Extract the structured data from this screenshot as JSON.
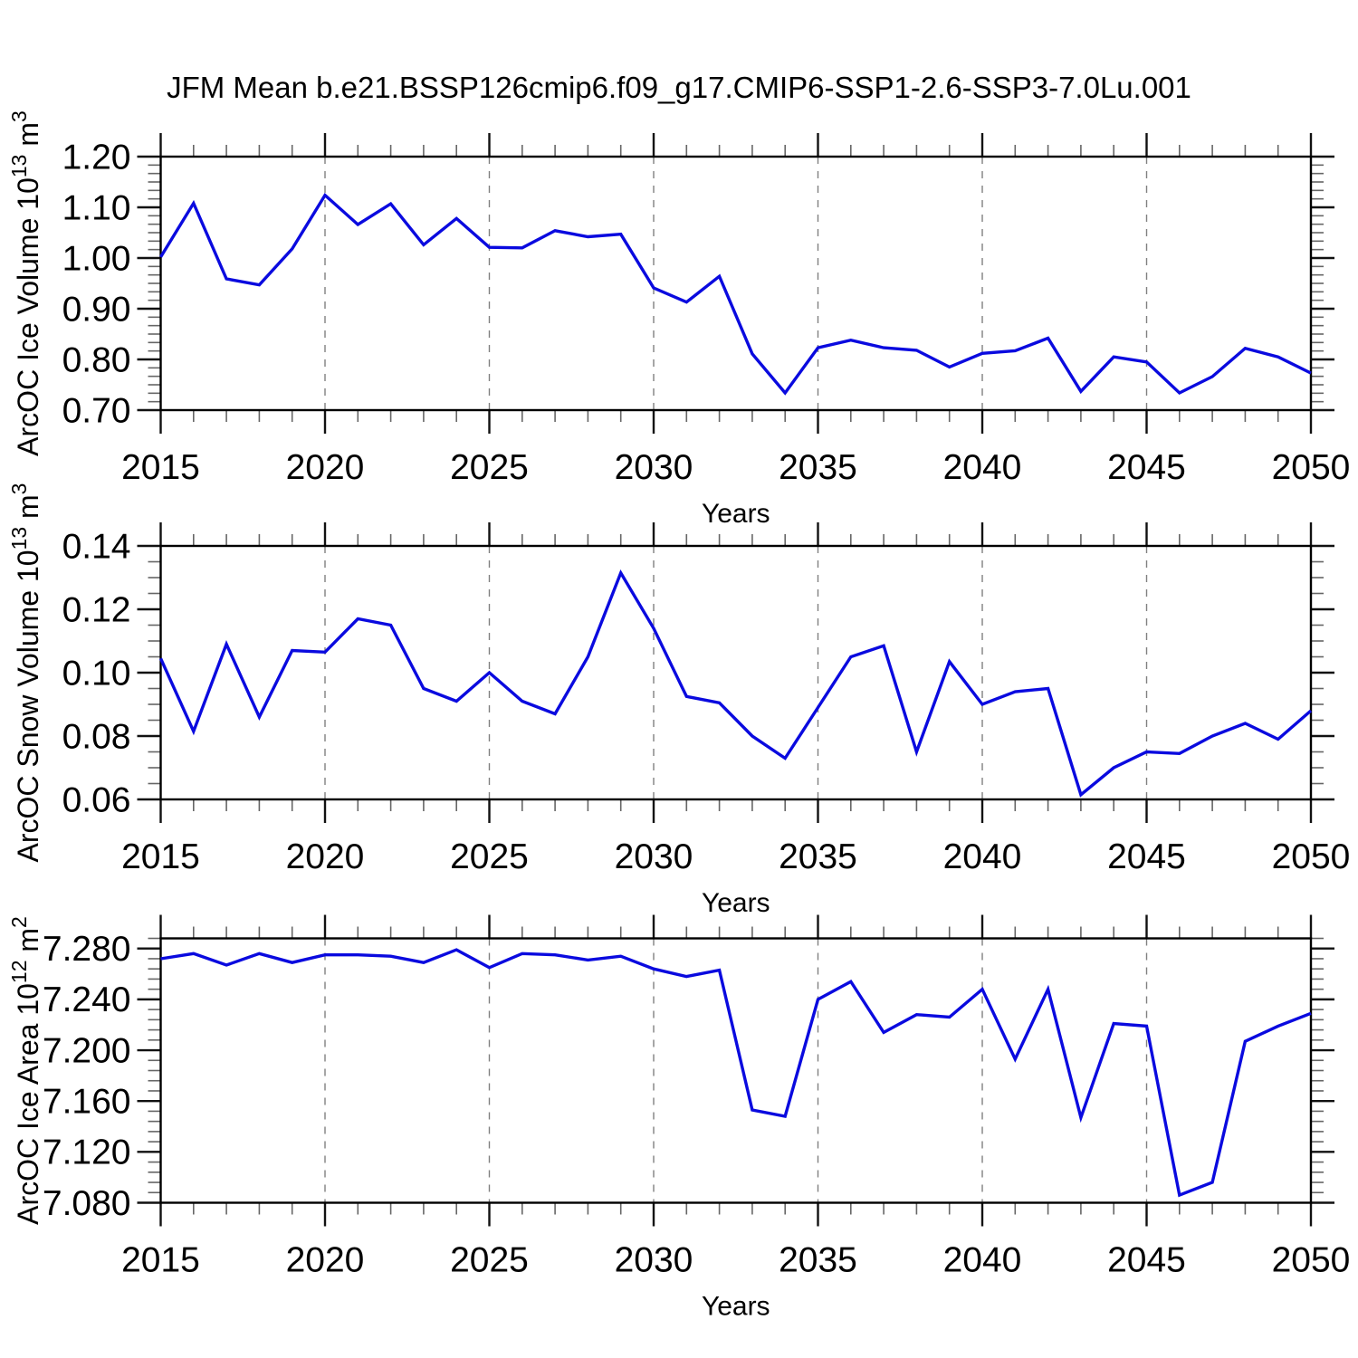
{
  "title": "JFM Mean b.e21.BSSP126cmip6.f09_g17.CMIP6-SSP1-2.6-SSP3-7.0Lu.001",
  "colors": {
    "series_line": "#0A0ADF",
    "gridline": "#808080",
    "frame": "#000000",
    "major_tick": "#111111",
    "minor_tick": "#666666",
    "text": "#000000",
    "background": "#ffffff"
  },
  "years": [
    2015,
    2016,
    2017,
    2018,
    2019,
    2020,
    2021,
    2022,
    2023,
    2024,
    2025,
    2026,
    2027,
    2028,
    2029,
    2030,
    2031,
    2032,
    2033,
    2034,
    2035,
    2036,
    2037,
    2038,
    2039,
    2040,
    2041,
    2042,
    2043,
    2044,
    2045,
    2046,
    2047,
    2048,
    2049,
    2050
  ],
  "x_major_ticks": [
    2015,
    2020,
    2025,
    2030,
    2035,
    2040,
    2045,
    2050
  ],
  "x_major_labels": [
    "2015",
    "2020",
    "2025",
    "2030",
    "2035",
    "2040",
    "2045",
    "2050"
  ],
  "x_gridline_years": [
    2020,
    2025,
    2030,
    2035,
    2040,
    2045
  ],
  "xlabel": "Years",
  "chart_data": [
    {
      "type": "line",
      "id": "ice-volume",
      "ylabel": "ArcOC Ice Volume 10¹³ m³",
      "ylabel_parts": [
        [
          "ArcOC Ice Volume 10",
          false
        ],
        [
          "13",
          true
        ],
        [
          " m",
          false
        ],
        [
          "3",
          true
        ]
      ],
      "xlabel": "Years",
      "ylim": [
        0.7,
        1.2
      ],
      "yticks": [
        1.2,
        1.1,
        1.0,
        0.9,
        0.8,
        0.7
      ],
      "ytick_labels": [
        "1.20",
        "1.10",
        "1.00",
        "0.90",
        "0.80",
        "0.70"
      ],
      "y_minor_subdiv": 6,
      "grid": "vertical-dashed",
      "legend": "none",
      "x": [
        2015,
        2016,
        2017,
        2018,
        2019,
        2020,
        2021,
        2022,
        2023,
        2024,
        2025,
        2026,
        2027,
        2028,
        2029,
        2030,
        2031,
        2032,
        2033,
        2034,
        2035,
        2036,
        2037,
        2038,
        2039,
        2040,
        2041,
        2042,
        2043,
        2044,
        2045,
        2046,
        2047,
        2048,
        2049,
        2050
      ],
      "values": [
        1.002,
        1.108,
        0.959,
        0.947,
        1.018,
        1.124,
        1.066,
        1.107,
        1.026,
        1.078,
        1.021,
        1.02,
        1.054,
        1.042,
        1.047,
        0.941,
        0.913,
        0.964,
        0.811,
        0.734,
        0.823,
        0.838,
        0.823,
        0.818,
        0.785,
        0.812,
        0.817,
        0.842,
        0.737,
        0.805,
        0.795,
        0.734,
        0.766,
        0.822,
        0.805,
        0.773
      ]
    },
    {
      "type": "line",
      "id": "snow-volume",
      "ylabel": "ArcOC Snow Volume 10¹³ m³",
      "ylabel_parts": [
        [
          "ArcOC Snow Volume 10",
          false
        ],
        [
          "13",
          true
        ],
        [
          " m",
          false
        ],
        [
          "3",
          true
        ]
      ],
      "xlabel": "Years",
      "ylim": [
        0.06,
        0.14
      ],
      "yticks": [
        0.14,
        0.12,
        0.1,
        0.08,
        0.06
      ],
      "ytick_labels": [
        "0.14",
        "0.12",
        "0.10",
        "0.08",
        "0.06"
      ],
      "y_minor_subdiv": 4,
      "grid": "vertical-dashed",
      "legend": "none",
      "x": [
        2015,
        2016,
        2017,
        2018,
        2019,
        2020,
        2021,
        2022,
        2023,
        2024,
        2025,
        2026,
        2027,
        2028,
        2029,
        2030,
        2031,
        2032,
        2033,
        2034,
        2035,
        2036,
        2037,
        2038,
        2039,
        2040,
        2041,
        2042,
        2043,
        2044,
        2045,
        2046,
        2047,
        2048,
        2049,
        2050
      ],
      "values": [
        0.1045,
        0.0815,
        0.109,
        0.086,
        0.107,
        0.1065,
        0.117,
        0.115,
        0.095,
        0.091,
        0.1,
        0.091,
        0.087,
        0.105,
        0.1315,
        0.114,
        0.0925,
        0.0905,
        0.08,
        0.073,
        0.089,
        0.105,
        0.1085,
        0.075,
        0.1035,
        0.09,
        0.094,
        0.095,
        0.0615,
        0.07,
        0.075,
        0.0745,
        0.08,
        0.084,
        0.079,
        0.088
      ]
    },
    {
      "type": "line",
      "id": "ice-area",
      "ylabel": "ArcOC Ice Area 10¹² m²",
      "ylabel_parts": [
        [
          "ArcOC Ice Area 10",
          false
        ],
        [
          "12",
          true
        ],
        [
          " m",
          false
        ],
        [
          "2",
          true
        ]
      ],
      "xlabel": "Years",
      "ylim": [
        7.08,
        7.288
      ],
      "yticks": [
        7.28,
        7.24,
        7.2,
        7.16,
        7.12,
        7.08
      ],
      "ytick_labels": [
        "7.280",
        "7.240",
        "7.200",
        "7.160",
        "7.120",
        "7.080"
      ],
      "y_minor_subdiv": 5,
      "grid": "vertical-dashed",
      "legend": "none",
      "x": [
        2015,
        2016,
        2017,
        2018,
        2019,
        2020,
        2021,
        2022,
        2023,
        2024,
        2025,
        2026,
        2027,
        2028,
        2029,
        2030,
        2031,
        2032,
        2033,
        2034,
        2035,
        2036,
        2037,
        2038,
        2039,
        2040,
        2041,
        2042,
        2043,
        2044,
        2045,
        2046,
        2047,
        2048,
        2049,
        2050
      ],
      "values": [
        7.272,
        7.276,
        7.267,
        7.276,
        7.269,
        7.275,
        7.275,
        7.274,
        7.269,
        7.279,
        7.265,
        7.276,
        7.275,
        7.271,
        7.274,
        7.264,
        7.258,
        7.263,
        7.153,
        7.148,
        7.24,
        7.254,
        7.214,
        7.228,
        7.226,
        7.248,
        7.193,
        7.248,
        7.147,
        7.221,
        7.219,
        7.086,
        7.096,
        7.207,
        7.219,
        7.229
      ]
    }
  ]
}
